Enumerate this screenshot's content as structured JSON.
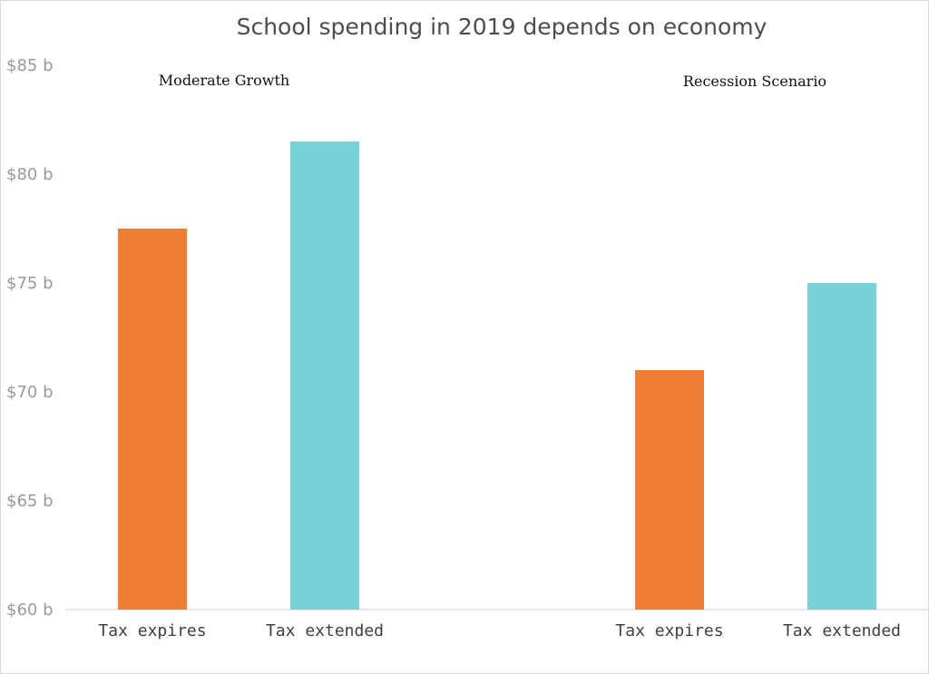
{
  "chart_data": {
    "type": "bar",
    "title": "School spending in 2019 depends on economy",
    "y_unit_prefix": "$",
    "y_unit_suffix": " b",
    "ylim": [
      60,
      85
    ],
    "y_ticks": [
      60,
      65,
      70,
      75,
      80,
      85
    ],
    "grid": false,
    "legend": "none",
    "panels": [
      {
        "label": "Moderate Growth",
        "categories": [
          "Tax expires",
          "Tax extended"
        ],
        "values": [
          77.5,
          81.5
        ]
      },
      {
        "label": "Recession Scenario",
        "categories": [
          "Tax expires",
          "Tax extended"
        ],
        "values": [
          71.0,
          75.0
        ]
      }
    ],
    "colors": {
      "tax_expires": "#ef7f35",
      "tax_extended": "#78d2da",
      "axis": "#c8c8c8"
    }
  }
}
